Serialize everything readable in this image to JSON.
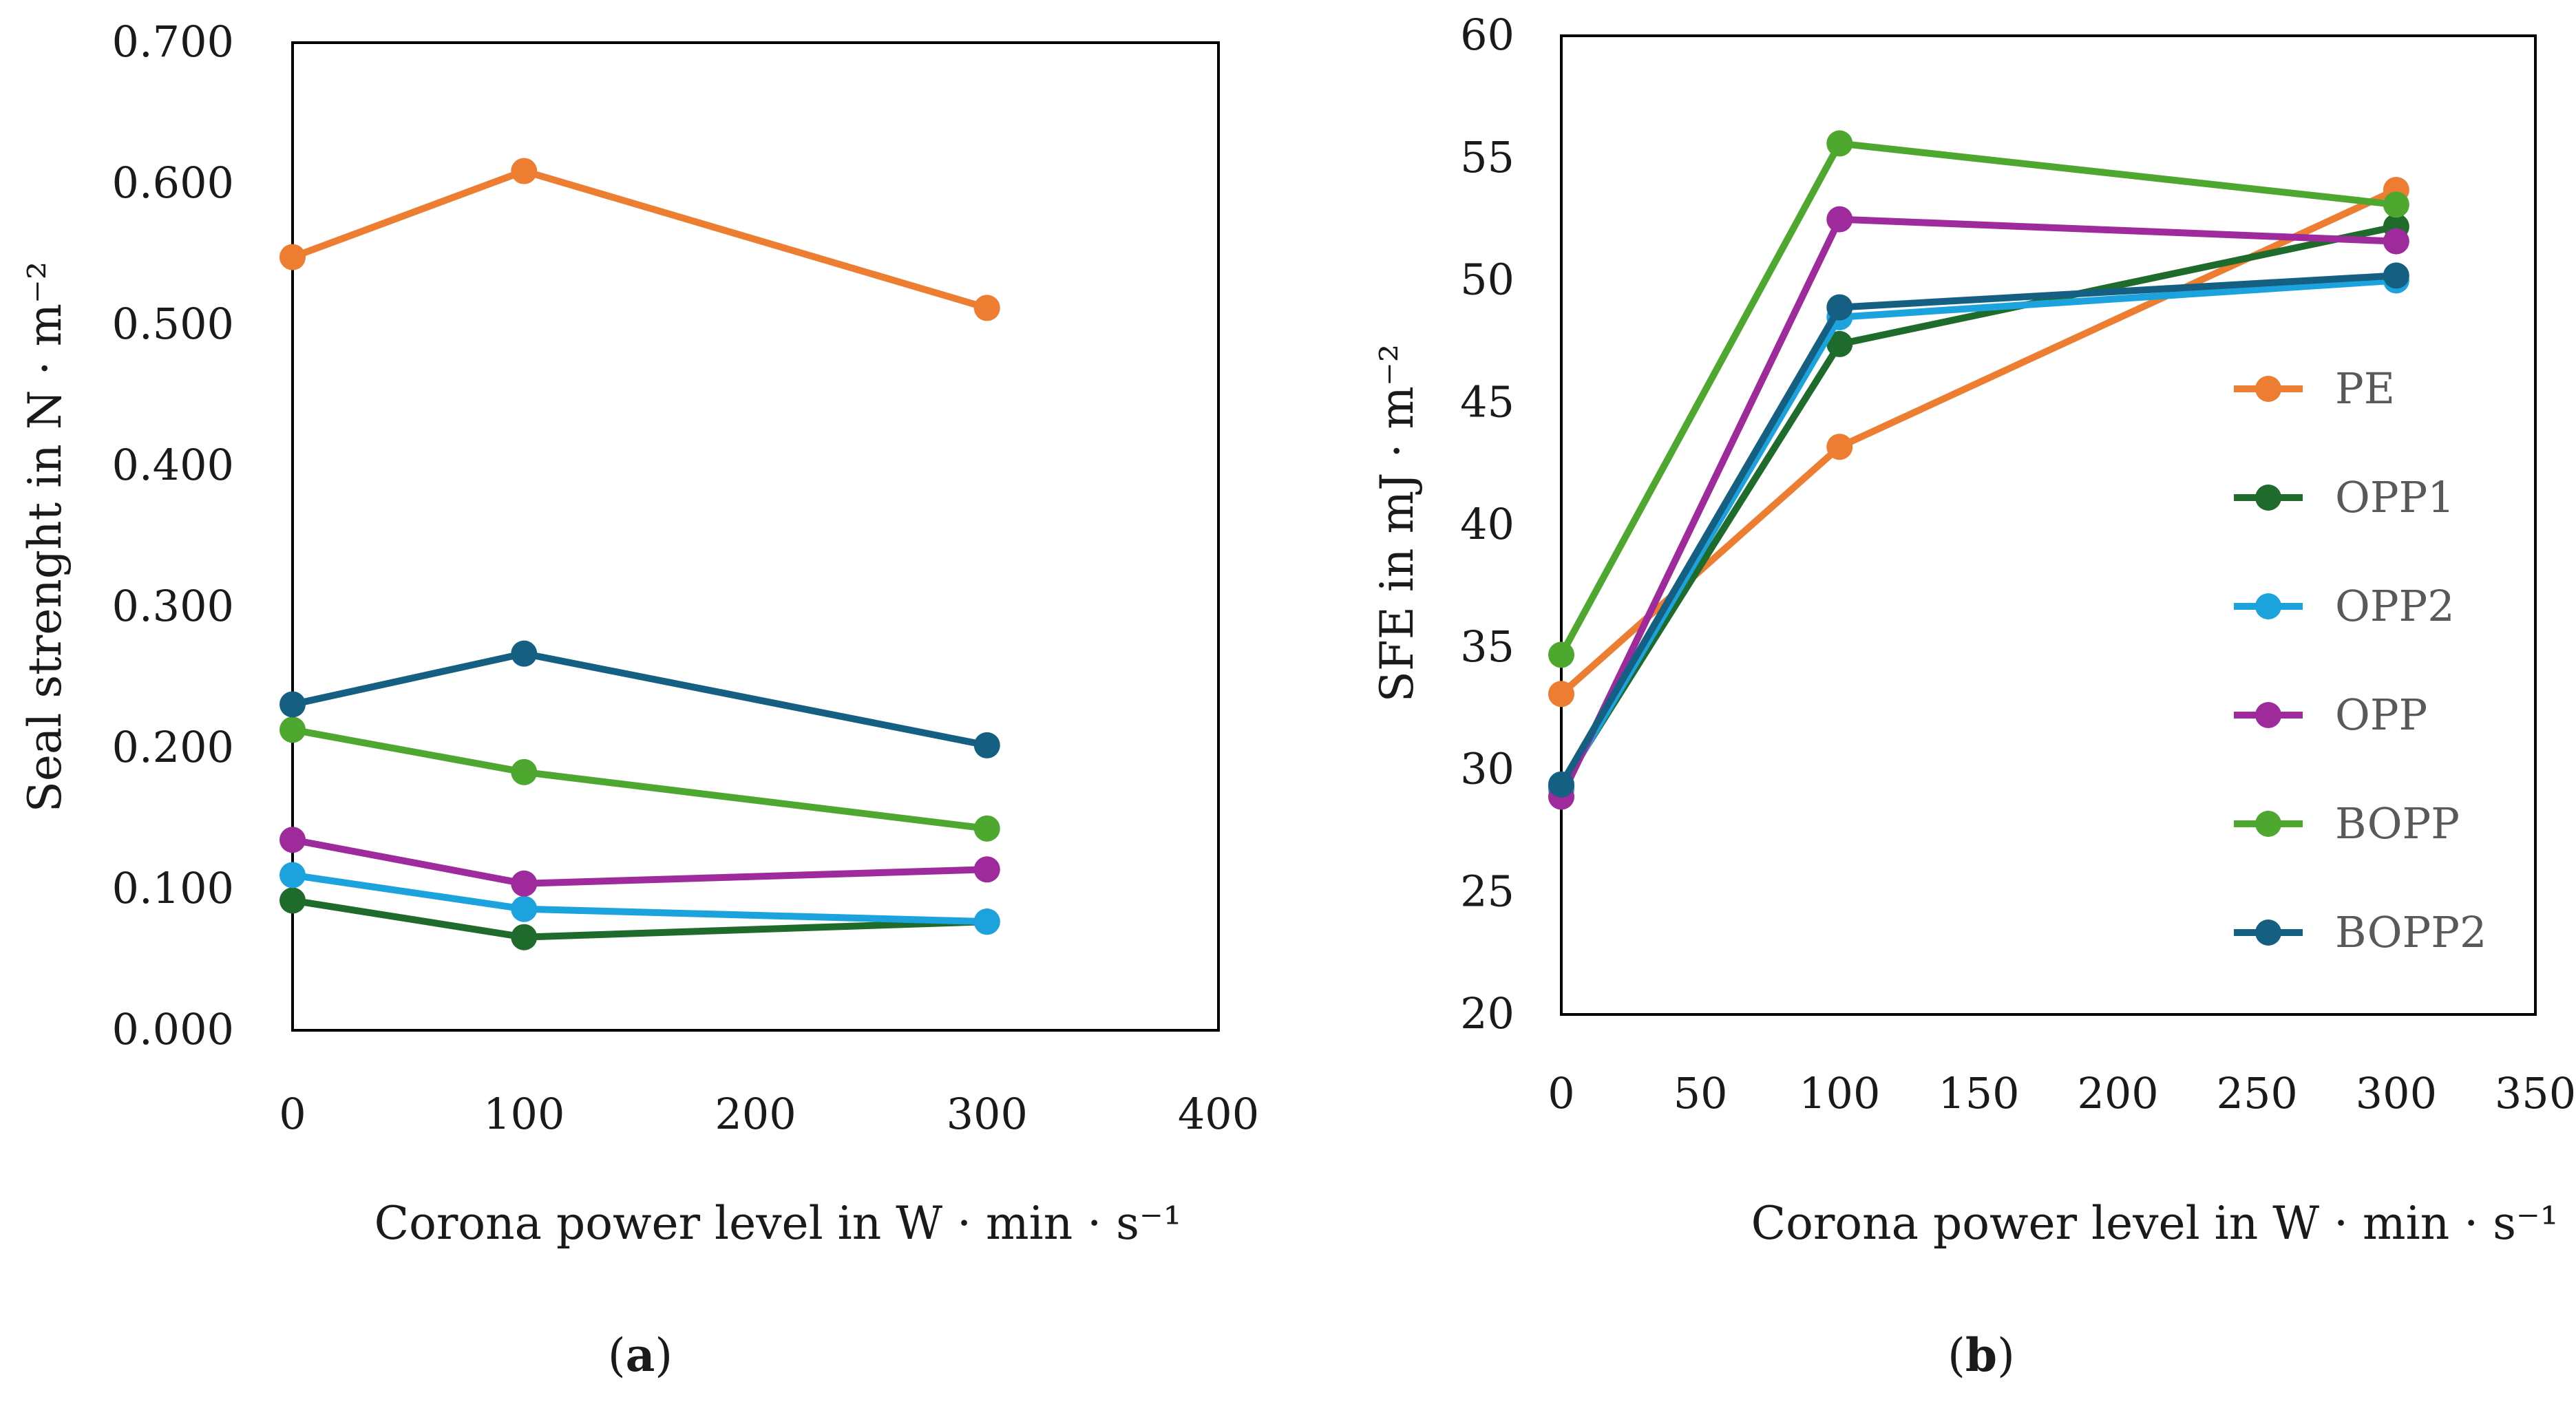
{
  "chart_data": [
    {
      "type": "line",
      "panel_label": "a",
      "title": "",
      "xlabel": "Corona power level in W · min  · s⁻¹",
      "ylabel": "Seal strenght in N · m⁻²",
      "xlim": [
        0,
        400
      ],
      "ylim": [
        0,
        0.7
      ],
      "xticks": [
        0,
        100,
        200,
        300,
        400
      ],
      "xtick_labels": [
        "0",
        "100",
        "200",
        "300",
        "400"
      ],
      "yticks": [
        0,
        0.1,
        0.2,
        0.3,
        0.4,
        0.5,
        0.6,
        0.7
      ],
      "ytick_labels": [
        "0.000",
        "0.100",
        "0.200",
        "0.300",
        "0.400",
        "0.500",
        "0.600",
        "0.700"
      ],
      "x": [
        0,
        100,
        300
      ],
      "series": [
        {
          "name": "PE",
          "color": "#ED7D31",
          "values": [
            0.548,
            0.609,
            0.512
          ]
        },
        {
          "name": "OPP1",
          "color": "#1E6B2C",
          "values": [
            0.092,
            0.066,
            0.077
          ]
        },
        {
          "name": "OPP2",
          "color": "#1CA3DE",
          "values": [
            0.11,
            0.086,
            0.077
          ]
        },
        {
          "name": "OPP",
          "color": "#9E2A9C",
          "values": [
            0.135,
            0.104,
            0.114
          ]
        },
        {
          "name": "BOPP",
          "color": "#4EA72E",
          "values": [
            0.213,
            0.183,
            0.143
          ]
        },
        {
          "name": "BOPP2",
          "color": "#156082",
          "values": [
            0.231,
            0.267,
            0.202
          ]
        }
      ]
    },
    {
      "type": "line",
      "panel_label": "b",
      "title": "",
      "xlabel": "Corona power level in W · min  · s⁻¹",
      "ylabel": "SFE in mJ · m⁻²",
      "xlim": [
        0,
        350
      ],
      "ylim": [
        20,
        60
      ],
      "xticks": [
        0,
        50,
        100,
        150,
        200,
        250,
        300,
        350
      ],
      "xtick_labels": [
        "0",
        "50",
        "100",
        "150",
        "200",
        "250",
        "300",
        "350"
      ],
      "yticks": [
        20,
        25,
        30,
        35,
        40,
        45,
        50,
        55,
        60
      ],
      "ytick_labels": [
        "20",
        "25",
        "30",
        "35",
        "40",
        "45",
        "50",
        "55",
        "60"
      ],
      "x": [
        0,
        100,
        300
      ],
      "legend_position": "right",
      "series": [
        {
          "name": "PE",
          "color": "#ED7D31",
          "values": [
            33.1,
            43.2,
            53.7
          ]
        },
        {
          "name": "OPP1",
          "color": "#1E6B2C",
          "values": [
            29.3,
            47.4,
            52.2
          ]
        },
        {
          "name": "OPP2",
          "color": "#1CA3DE",
          "values": [
            29.2,
            48.5,
            50.0
          ]
        },
        {
          "name": "OPP",
          "color": "#9E2A9C",
          "values": [
            28.9,
            52.5,
            51.6
          ]
        },
        {
          "name": "BOPP",
          "color": "#4EA72E",
          "values": [
            34.7,
            55.6,
            53.1
          ]
        },
        {
          "name": "BOPP2",
          "color": "#156082",
          "values": [
            29.4,
            48.9,
            50.2
          ]
        }
      ]
    }
  ]
}
